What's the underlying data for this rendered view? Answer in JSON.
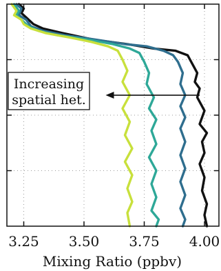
{
  "chart_data": {
    "type": "line",
    "orientation": "profile",
    "title": "",
    "xlabel": "Mixing Ratio (ppbv)",
    "ylabel": "",
    "xlim": [
      3.18,
      4.06
    ],
    "ylim": [
      0,
      1
    ],
    "x_ticks": [
      3.25,
      3.5,
      3.75,
      4.0
    ],
    "x_tick_labels": [
      "3.25",
      "3.50",
      "3.75",
      "4.00"
    ],
    "y_ticks": [
      0.25,
      0.5,
      0.75
    ],
    "y_tick_labels": [],
    "grid": true,
    "legend": "none",
    "series": [
      {
        "color": "#111111",
        "points": [
          [
            3.23,
            1.0
          ],
          [
            3.25,
            0.98
          ],
          [
            3.24,
            0.96
          ],
          [
            3.27,
            0.93
          ],
          [
            3.29,
            0.91
          ],
          [
            3.33,
            0.89
          ],
          [
            3.41,
            0.87
          ],
          [
            3.54,
            0.84
          ],
          [
            3.68,
            0.82
          ],
          [
            3.79,
            0.8
          ],
          [
            3.88,
            0.79
          ],
          [
            3.93,
            0.77
          ],
          [
            3.95,
            0.73
          ],
          [
            3.97,
            0.69
          ],
          [
            3.96,
            0.65
          ],
          [
            3.98,
            0.62
          ],
          [
            3.97,
            0.58
          ],
          [
            4.0,
            0.52
          ],
          [
            3.98,
            0.46
          ],
          [
            4.01,
            0.42
          ],
          [
            3.99,
            0.38
          ],
          [
            4.0,
            0.33
          ],
          [
            3.98,
            0.28
          ],
          [
            4.0,
            0.22
          ],
          [
            3.99,
            0.16
          ],
          [
            4.01,
            0.1
          ],
          [
            4.0,
            0.05
          ],
          [
            4.01,
            0.0
          ]
        ]
      },
      {
        "color": "#2f6e8e",
        "points": [
          [
            3.22,
            1.0
          ],
          [
            3.24,
            0.98
          ],
          [
            3.23,
            0.95
          ],
          [
            3.26,
            0.93
          ],
          [
            3.28,
            0.9
          ],
          [
            3.33,
            0.88
          ],
          [
            3.42,
            0.86
          ],
          [
            3.55,
            0.84
          ],
          [
            3.67,
            0.82
          ],
          [
            3.76,
            0.81
          ],
          [
            3.83,
            0.79
          ],
          [
            3.87,
            0.77
          ],
          [
            3.89,
            0.74
          ],
          [
            3.91,
            0.69
          ],
          [
            3.9,
            0.64
          ],
          [
            3.92,
            0.59
          ],
          [
            3.9,
            0.54
          ],
          [
            3.92,
            0.49
          ],
          [
            3.9,
            0.44
          ],
          [
            3.92,
            0.38
          ],
          [
            3.9,
            0.32
          ],
          [
            3.92,
            0.26
          ],
          [
            3.9,
            0.2
          ],
          [
            3.92,
            0.14
          ],
          [
            3.9,
            0.08
          ],
          [
            3.92,
            0.03
          ],
          [
            3.91,
            0.0
          ]
        ]
      },
      {
        "color": "#2ea898",
        "points": [
          [
            3.21,
            1.0
          ],
          [
            3.23,
            0.97
          ],
          [
            3.22,
            0.95
          ],
          [
            3.25,
            0.92
          ],
          [
            3.27,
            0.9
          ],
          [
            3.31,
            0.88
          ],
          [
            3.39,
            0.86
          ],
          [
            3.52,
            0.84
          ],
          [
            3.62,
            0.82
          ],
          [
            3.69,
            0.8
          ],
          [
            3.73,
            0.78
          ],
          [
            3.75,
            0.74
          ],
          [
            3.77,
            0.69
          ],
          [
            3.76,
            0.64
          ],
          [
            3.79,
            0.58
          ],
          [
            3.77,
            0.53
          ],
          [
            3.8,
            0.48
          ],
          [
            3.78,
            0.43
          ],
          [
            3.8,
            0.37
          ],
          [
            3.77,
            0.31
          ],
          [
            3.8,
            0.25
          ],
          [
            3.78,
            0.19
          ],
          [
            3.8,
            0.13
          ],
          [
            3.78,
            0.07
          ],
          [
            3.81,
            0.03
          ],
          [
            3.8,
            0.0
          ]
        ]
      },
      {
        "color": "#c8e03c",
        "points": [
          [
            3.2,
            1.0
          ],
          [
            3.22,
            0.97
          ],
          [
            3.21,
            0.95
          ],
          [
            3.24,
            0.93
          ],
          [
            3.25,
            0.91
          ],
          [
            3.28,
            0.89
          ],
          [
            3.34,
            0.87
          ],
          [
            3.44,
            0.85
          ],
          [
            3.53,
            0.83
          ],
          [
            3.6,
            0.81
          ],
          [
            3.64,
            0.79
          ],
          [
            3.66,
            0.75
          ],
          [
            3.68,
            0.7
          ],
          [
            3.66,
            0.65
          ],
          [
            3.69,
            0.59
          ],
          [
            3.66,
            0.53
          ],
          [
            3.69,
            0.47
          ],
          [
            3.67,
            0.41
          ],
          [
            3.7,
            0.35
          ],
          [
            3.67,
            0.29
          ],
          [
            3.7,
            0.23
          ],
          [
            3.68,
            0.17
          ],
          [
            3.7,
            0.11
          ],
          [
            3.68,
            0.06
          ],
          [
            3.69,
            0.0
          ]
        ]
      }
    ],
    "annotations": [
      {
        "text_lines": [
          "Increasing",
          "spatial het."
        ],
        "arrow": {
          "from_x": 3.98,
          "to_x": 3.59,
          "y": 0.59
        }
      }
    ]
  }
}
